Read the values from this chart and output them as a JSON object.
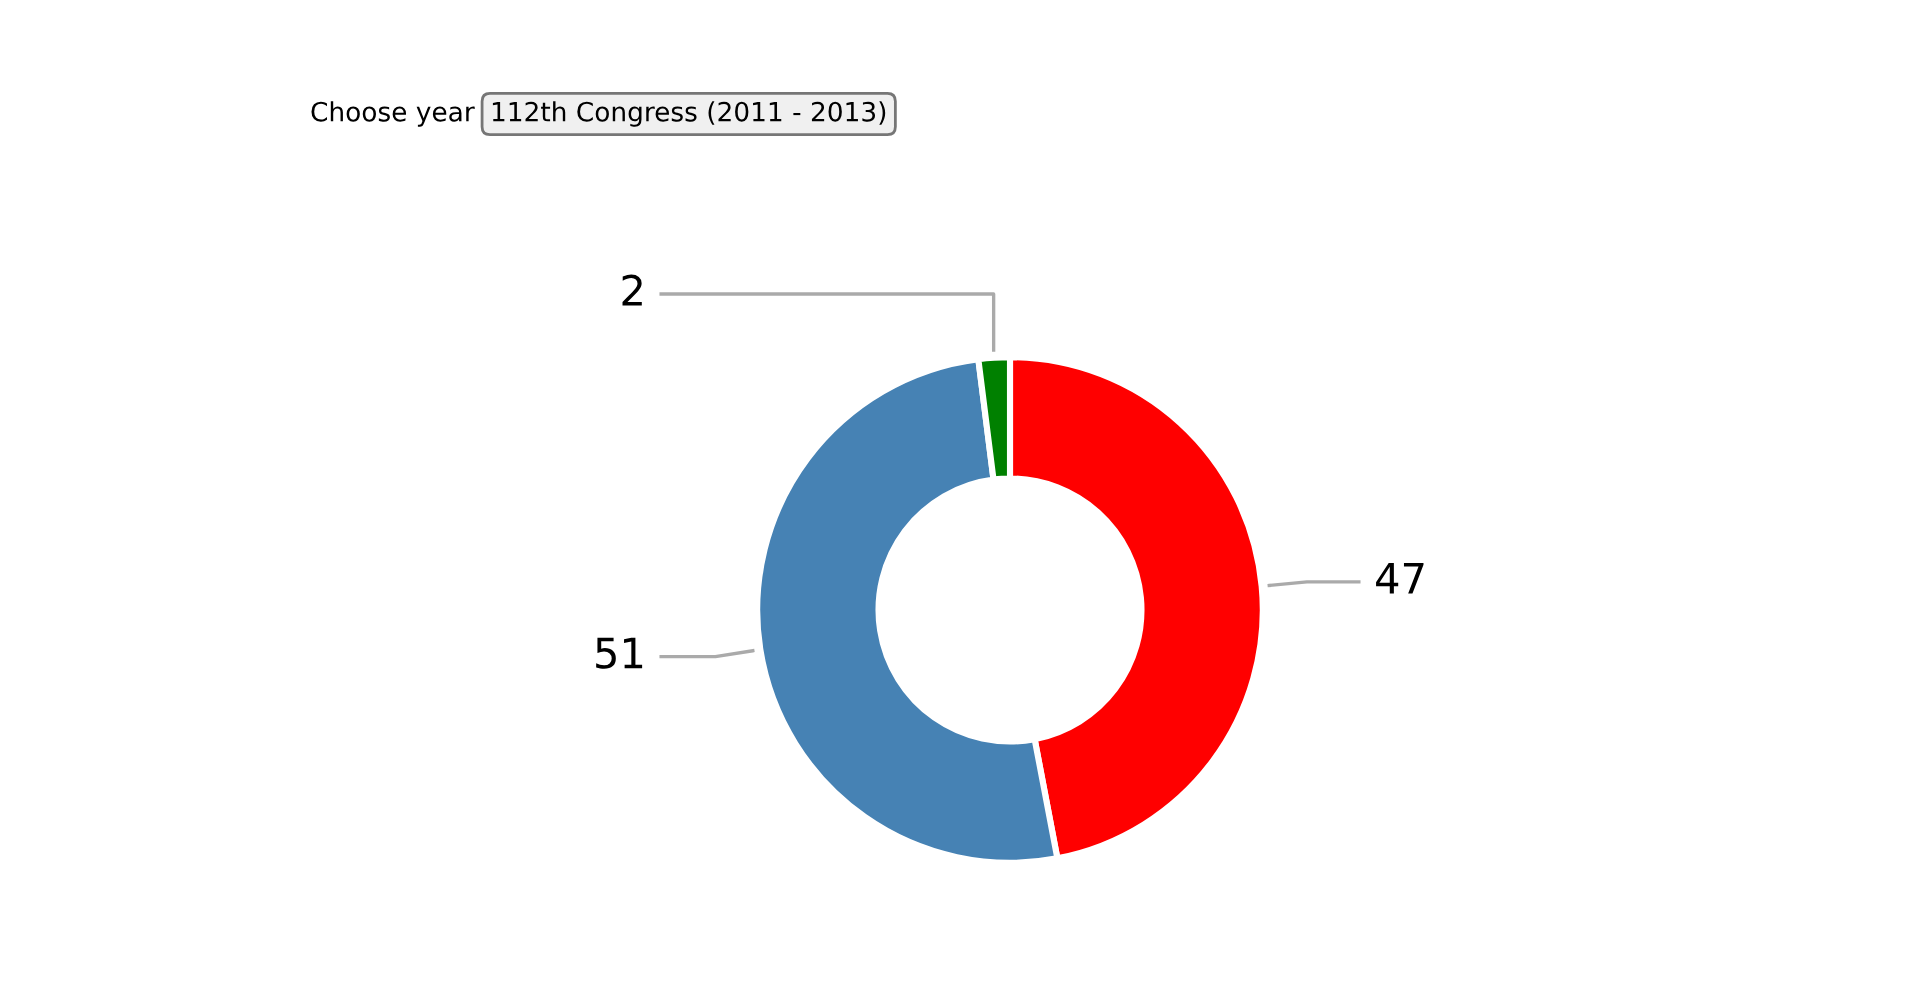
{
  "chart_data": {
    "type": "donut",
    "categories": [
      null,
      null,
      null
    ],
    "values": [
      47,
      51,
      2
    ],
    "colors": [
      "#ff0000",
      "#4682b4",
      "#008000"
    ],
    "data_labels": true,
    "annotations": [
      "Choose year",
      "112th Congress (2011 - 2013)"
    ]
  }
}
